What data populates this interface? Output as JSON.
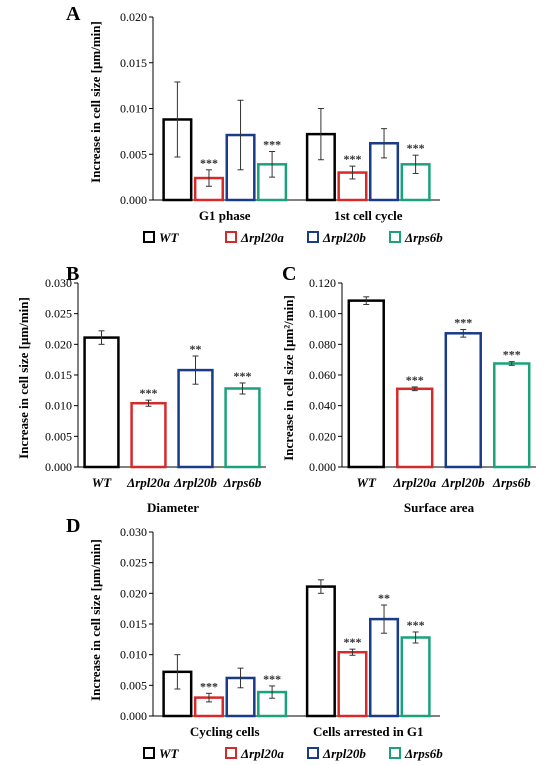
{
  "colors": {
    "WT": "#000000",
    "rpl20a": "#d42a2a",
    "rpl20b": "#1a3a8a",
    "rps6b": "#1aa37a"
  },
  "legend": [
    "WT",
    "Δrpl20a",
    "Δrpl20b",
    "Δrps6b"
  ],
  "chart_data": [
    {
      "id": "A",
      "type": "bar",
      "ylabel": "Increase in cell size [μm/min]",
      "ylim": [
        0,
        0.02
      ],
      "yticks": [
        "0.000",
        "0.005",
        "0.010",
        "0.015",
        "0.020"
      ],
      "tickvals": [
        0,
        0.005,
        0.01,
        0.015,
        0.02
      ],
      "categories": [
        "G1 phase",
        "1st cell cycle"
      ],
      "series": [
        {
          "name": "WT",
          "values": [
            0.0088,
            0.0072
          ],
          "errors": [
            0.0041,
            0.0028
          ],
          "stars": [
            "",
            ""
          ]
        },
        {
          "name": "Δrpl20a",
          "values": [
            0.0024,
            0.003
          ],
          "errors": [
            0.0009,
            0.0007
          ],
          "stars": [
            "***",
            "***"
          ]
        },
        {
          "name": "Δrpl20b",
          "values": [
            0.0071,
            0.0062
          ],
          "errors": [
            0.0038,
            0.0016
          ],
          "stars": [
            "",
            ""
          ]
        },
        {
          "name": "Δrps6b",
          "values": [
            0.0039,
            0.0039
          ],
          "errors": [
            0.0014,
            0.001
          ],
          "stars": [
            "***",
            "***"
          ]
        }
      ],
      "legend": "bottom"
    },
    {
      "id": "B",
      "type": "bar",
      "ylabel": "Increase in cell size [μm/min]",
      "xlabel": "Diameter",
      "ylim": [
        0,
        0.03
      ],
      "yticks": [
        "0.000",
        "0.005",
        "0.010",
        "0.015",
        "0.020",
        "0.025",
        "0.030"
      ],
      "tickvals": [
        0,
        0.005,
        0.01,
        0.015,
        0.02,
        0.025,
        0.03
      ],
      "categories": [
        "WT",
        "Δrpl20a",
        "Δrpl20b",
        "Δrps6b"
      ],
      "values": [
        0.0211,
        0.0104,
        0.0158,
        0.0128
      ],
      "errors": [
        0.0011,
        0.0005,
        0.0023,
        0.0009
      ],
      "stars": [
        "",
        "***",
        "**",
        "***"
      ]
    },
    {
      "id": "C",
      "type": "bar",
      "ylabel": "Increase in cell size [μm²/min]",
      "xlabel": "Surface area",
      "ylim": [
        0,
        0.12
      ],
      "yticks": [
        "0.000",
        "0.020",
        "0.040",
        "0.060",
        "0.080",
        "0.100",
        "0.120"
      ],
      "tickvals": [
        0,
        0.02,
        0.04,
        0.06,
        0.08,
        0.1,
        0.12
      ],
      "categories": [
        "WT",
        "Δrpl20a",
        "Δrpl20b",
        "Δrps6b"
      ],
      "values": [
        0.1085,
        0.051,
        0.0872,
        0.0675
      ],
      "errors": [
        0.0025,
        0.0012,
        0.0025,
        0.0012
      ],
      "stars": [
        "",
        "***",
        "***",
        "***"
      ]
    },
    {
      "id": "D",
      "type": "bar",
      "ylabel": "Increase in cell size [μm/min]",
      "ylim": [
        0,
        0.03
      ],
      "yticks": [
        "0.000",
        "0.005",
        "0.010",
        "0.015",
        "0.020",
        "0.025",
        "0.030"
      ],
      "tickvals": [
        0,
        0.005,
        0.01,
        0.015,
        0.02,
        0.025,
        0.03
      ],
      "categories": [
        "Cycling cells",
        "Cells arrested in G1"
      ],
      "series": [
        {
          "name": "WT",
          "values": [
            0.0072,
            0.0211
          ],
          "errors": [
            0.0028,
            0.0011
          ],
          "stars": [
            "",
            ""
          ]
        },
        {
          "name": "Δrpl20a",
          "values": [
            0.003,
            0.0104
          ],
          "errors": [
            0.0007,
            0.0005
          ],
          "stars": [
            "***",
            "***"
          ]
        },
        {
          "name": "Δrpl20b",
          "values": [
            0.0062,
            0.0158
          ],
          "errors": [
            0.0016,
            0.0023
          ],
          "stars": [
            "",
            "**"
          ]
        },
        {
          "name": "Δrps6b",
          "values": [
            0.0039,
            0.0128
          ],
          "errors": [
            0.001,
            0.0009
          ],
          "stars": [
            "***",
            "***"
          ]
        }
      ],
      "legend": "bottom"
    }
  ]
}
